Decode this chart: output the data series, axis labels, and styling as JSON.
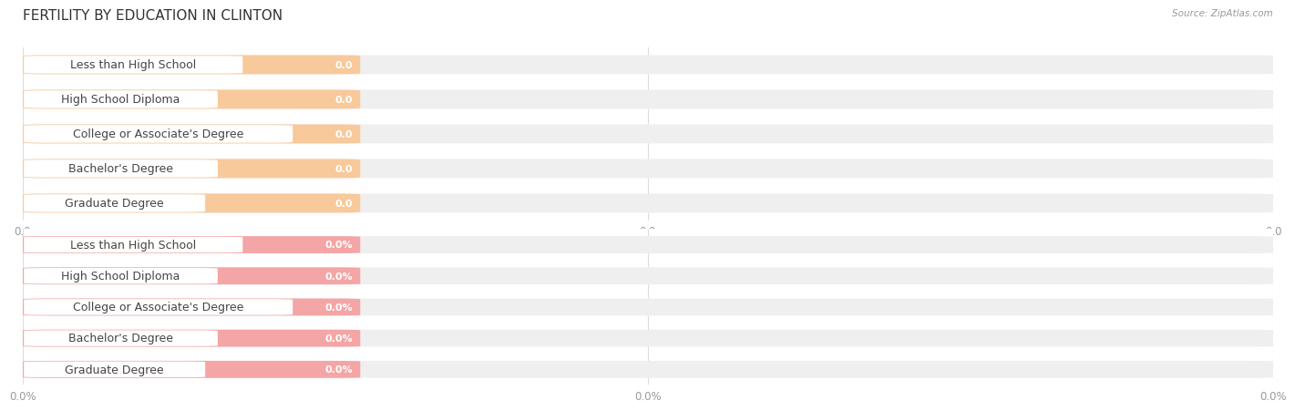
{
  "title": "FERTILITY BY EDUCATION IN CLINTON",
  "source": "Source: ZipAtlas.com",
  "categories": [
    "Less than High School",
    "High School Diploma",
    "College or Associate's Degree",
    "Bachelor's Degree",
    "Graduate Degree"
  ],
  "values_top": [
    0.0,
    0.0,
    0.0,
    0.0,
    0.0
  ],
  "values_bottom": [
    0.0,
    0.0,
    0.0,
    0.0,
    0.0
  ],
  "bar_color_top": "#F7C99B",
  "bar_color_bottom": "#F4A5A5",
  "bar_bg_color": "#EFEFEF",
  "label_bg_color": "#FFFFFF",
  "label_text_color": "#444444",
  "value_text_color": "#FFFFFF",
  "title_fontsize": 11,
  "label_fontsize": 9,
  "value_fontsize": 8,
  "tick_fontsize": 8.5,
  "source_fontsize": 7.5,
  "bg_color": "#FFFFFF",
  "grid_color": "#DDDDDD",
  "tick_labels_top": [
    "0.0",
    "0.0",
    "0.0"
  ],
  "tick_labels_bottom": [
    "0.0%",
    "0.0%",
    "0.0%"
  ]
}
